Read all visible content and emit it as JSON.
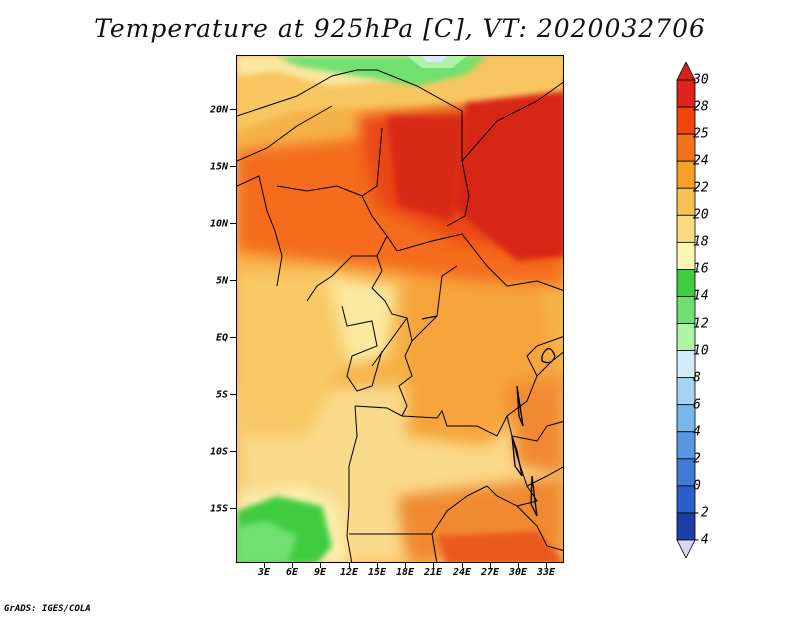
{
  "title": "Temperature at 925hPa [C], VT: 2020032706",
  "footer": "GrADS: IGES/COLA",
  "map": {
    "lat_labels": [
      "20N",
      "15N",
      "10N",
      "5N",
      "EQ",
      "5S",
      "10S",
      "15S"
    ],
    "lon_labels": [
      "3E",
      "6E",
      "9E",
      "12E",
      "15E",
      "18E",
      "21E",
      "24E",
      "27E",
      "30E",
      "33E"
    ]
  },
  "colorbar": {
    "labels": [
      "30",
      "28",
      "25",
      "24",
      "22",
      "20",
      "18",
      "16",
      "14",
      "12",
      "10",
      "8",
      "6",
      "4",
      "2",
      "0",
      "-2",
      "-4"
    ],
    "colors": [
      "#e0221a",
      "#f2440f",
      "#f4711b",
      "#f6a028",
      "#f7c053",
      "#f9dc81",
      "#fcf6b4",
      "#3fcc3f",
      "#6fe06f",
      "#aef3a8",
      "#d2ecf9",
      "#a6d3f4",
      "#7ab6ec",
      "#5797e3",
      "#3e7bdb",
      "#2a5ec8",
      "#1c3ea6",
      "#0d1f82"
    ],
    "top_color": "#d8201a",
    "bottom_color": "#d8d8f0"
  }
}
